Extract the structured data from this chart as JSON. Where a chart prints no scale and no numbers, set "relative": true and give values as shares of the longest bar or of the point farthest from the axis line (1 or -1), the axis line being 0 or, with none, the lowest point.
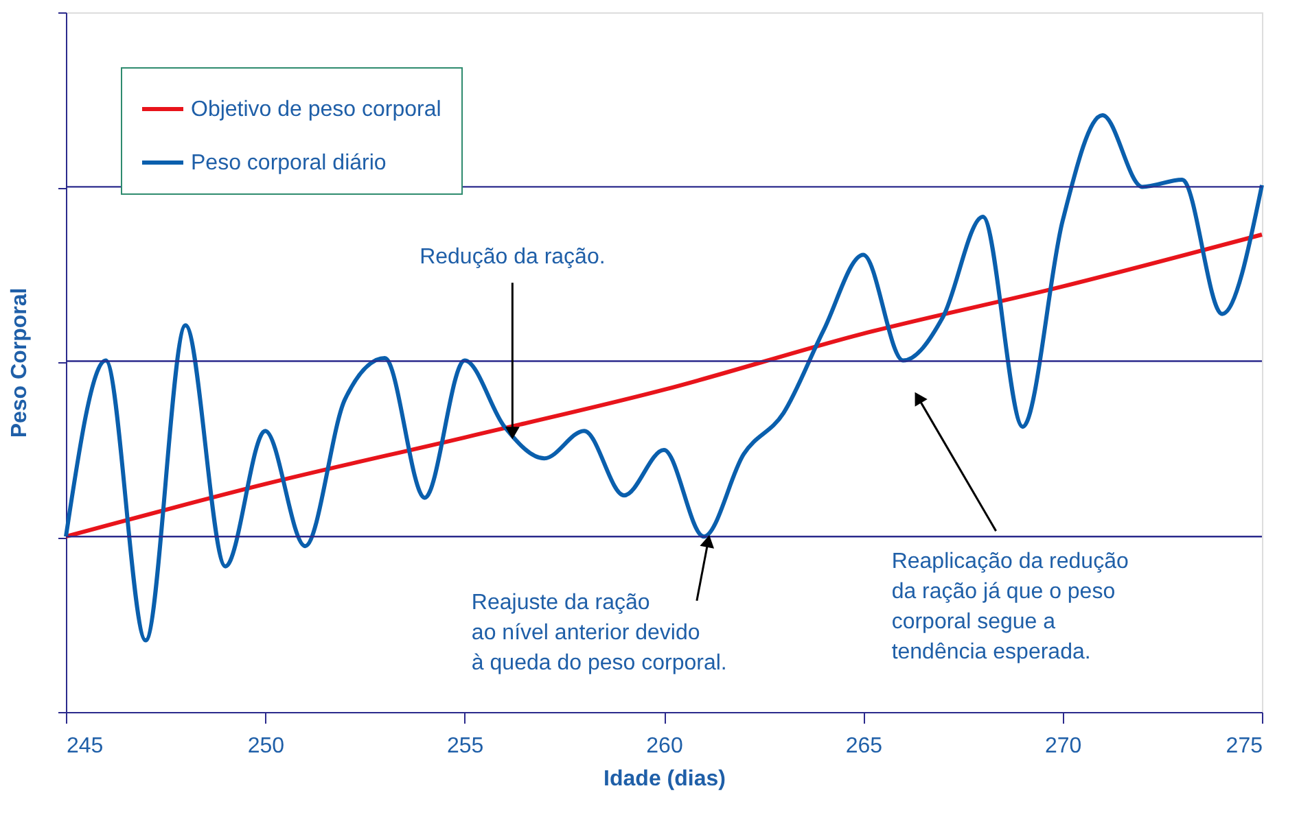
{
  "chart_data": {
    "type": "line",
    "relative": true,
    "xlabel": "Idade (dias)",
    "ylabel": "Peso Corporal",
    "xlim": [
      245,
      275
    ],
    "xticks": [
      245,
      250,
      255,
      260,
      265,
      270,
      275
    ],
    "ref_lines": [
      {
        "axis": "y",
        "value": 0.294,
        "color": "#2b2a8c"
      },
      {
        "axis": "y",
        "value": 0.588,
        "color": "#2b2a8c"
      },
      {
        "axis": "y",
        "value": 0.88,
        "color": "#2b2a8c"
      }
    ],
    "legend": "top left",
    "line_style": "solid",
    "marker": "none",
    "series": [
      {
        "name": "Objetivo de peso corporal",
        "color": "#e8141b",
        "x": [
          245,
          250,
          255,
          260,
          265,
          270,
          275
        ],
        "values": [
          0.294,
          0.382,
          0.46,
          0.54,
          0.634,
          0.713,
          0.8
        ]
      },
      {
        "name": "Peso corporal diário",
        "color": "#0a5fad",
        "x": [
          245,
          246,
          247,
          248,
          249,
          250,
          251,
          252,
          253,
          254,
          255,
          256,
          257,
          258,
          259,
          260,
          261,
          262,
          263,
          264,
          265,
          266,
          267,
          268,
          269,
          270,
          271,
          272,
          273,
          274,
          275
        ],
        "values": [
          0.294,
          0.589,
          0.12,
          0.648,
          0.244,
          0.471,
          0.278,
          0.524,
          0.593,
          0.359,
          0.589,
          0.478,
          0.425,
          0.471,
          0.363,
          0.439,
          0.294,
          0.432,
          0.501,
          0.639,
          0.766,
          0.589,
          0.662,
          0.83,
          0.478,
          0.823,
          1.0,
          0.88,
          0.892,
          0.667,
          0.883
        ]
      }
    ],
    "annotations": [
      {
        "text": "Redução da ração.",
        "x": 256.2,
        "y": 0.471
      },
      {
        "text": "Reajuste da ração\nao nível anterior devido\nà queda do peso corporal.",
        "x": 261.1,
        "y": 0.283
      },
      {
        "text": "Reaplicação da redução\nda ração já que o peso\ncorporal segue a\ntendência esperada.",
        "x": 266.4,
        "y": 0.524
      }
    ]
  }
}
